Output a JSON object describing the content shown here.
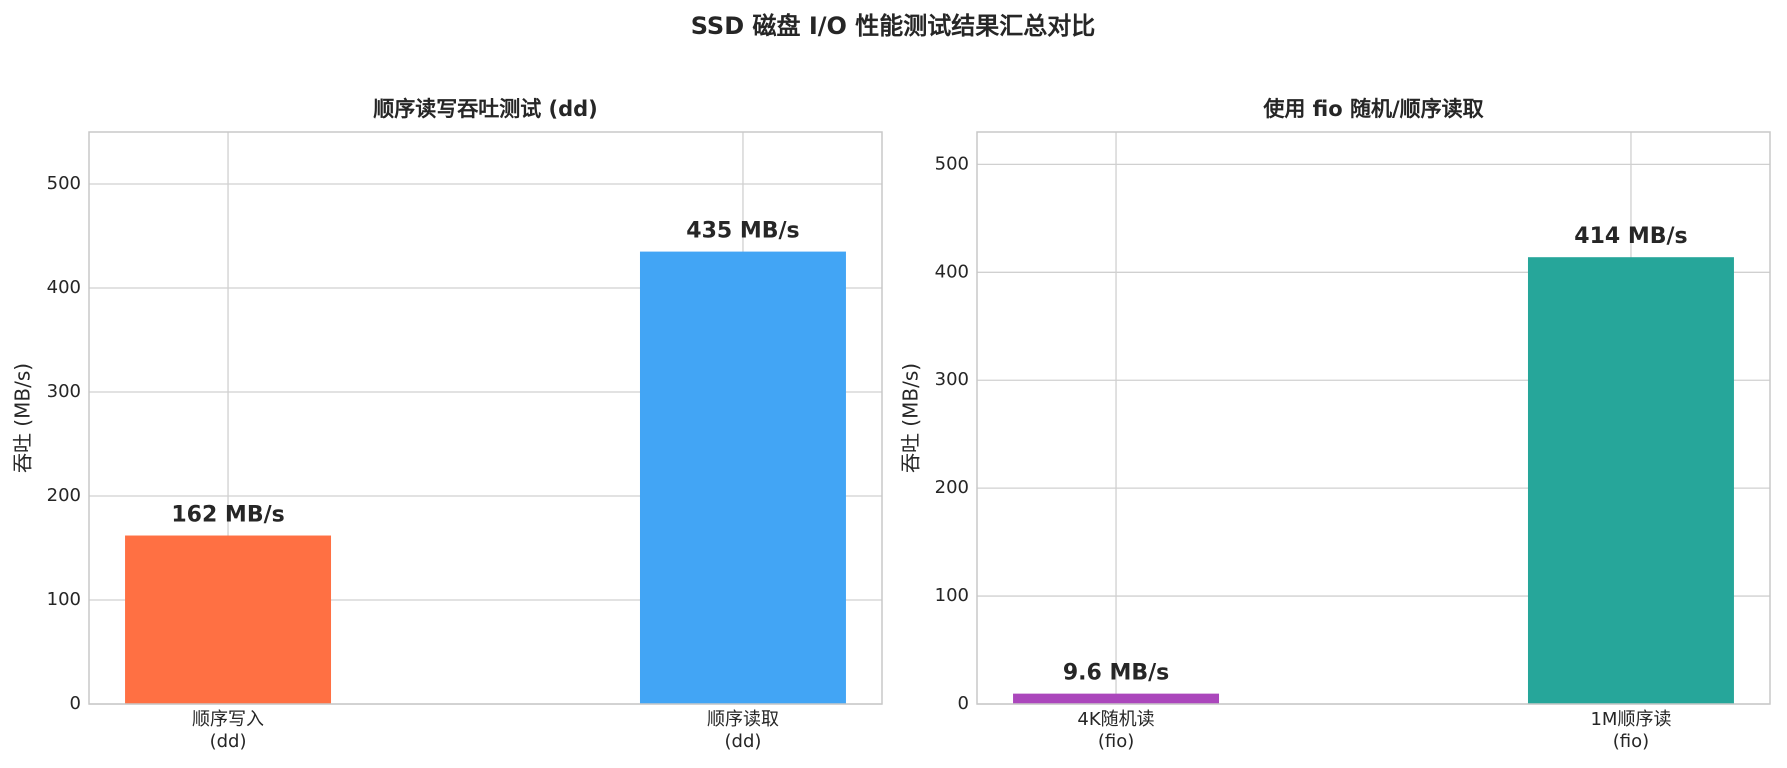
{
  "title": "SSD 磁盘 I/O 性能测试结果汇总对比",
  "chart_data": [
    {
      "type": "bar",
      "title": "顺序读写吞吐测试 (dd)",
      "y_label": "吞吐 (MB/s)",
      "categories": [
        "顺序写入\n(dd)",
        "顺序读取\n(dd)"
      ],
      "values": [
        162,
        435
      ],
      "value_labels": [
        "162 MB/s",
        "435 MB/s"
      ],
      "colors": [
        "#ff7043",
        "#42a5f5"
      ],
      "ylim": [
        0,
        550
      ],
      "yticks": [
        0,
        100,
        200,
        300,
        400,
        500
      ],
      "grid": true
    },
    {
      "type": "bar",
      "title": "使用 fio 随机/顺序读取",
      "y_label": "吞吐 (MB/s)",
      "categories": [
        "4K随机读\n(fio)",
        "1M顺序读\n(fio)"
      ],
      "values": [
        9.6,
        414
      ],
      "value_labels": [
        "9.6 MB/s",
        "414 MB/s"
      ],
      "colors": [
        "#ab47bc",
        "#26a69a"
      ],
      "ylim": [
        0,
        530
      ],
      "yticks": [
        0,
        100,
        200,
        300,
        400,
        500
      ],
      "grid": true
    }
  ]
}
